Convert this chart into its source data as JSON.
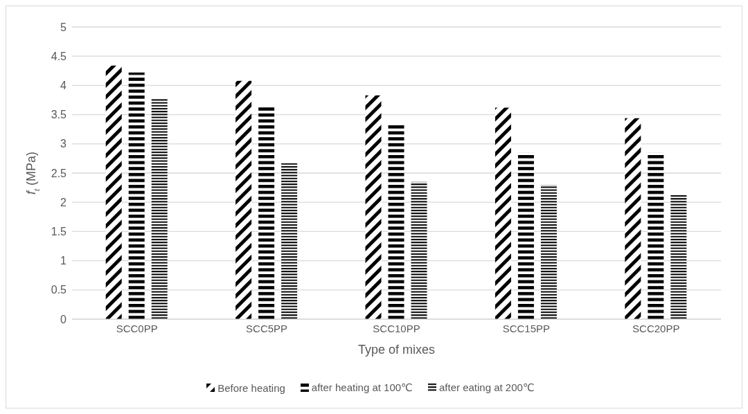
{
  "chart_data": {
    "type": "bar",
    "xlabel": "Type of mixes",
    "ylabel": "f$_{t}$ (MPa)",
    "categories": [
      "SCC0PP",
      "SCC5PP",
      "SCC10PP",
      "SCC15PP",
      "SCC20PP"
    ],
    "series": [
      {
        "name": "Before heating",
        "color": "#000000",
        "values": [
          4.34,
          4.08,
          3.83,
          3.62,
          3.44
        ]
      },
      {
        "name": "after heating at 100℃",
        "color": "#000000",
        "values": [
          4.22,
          3.66,
          3.32,
          2.85,
          2.85
        ]
      },
      {
        "name": "after eating at 200℃",
        "color": "#000000",
        "values": [
          3.78,
          2.67,
          2.35,
          2.3,
          2.13
        ]
      }
    ],
    "ylim": [
      0,
      5
    ],
    "yticks": [
      0,
      0.5,
      1,
      1.5,
      2,
      2.5,
      3,
      3.5,
      4,
      4.5,
      5
    ],
    "grid": "y",
    "legend": "bottom"
  }
}
